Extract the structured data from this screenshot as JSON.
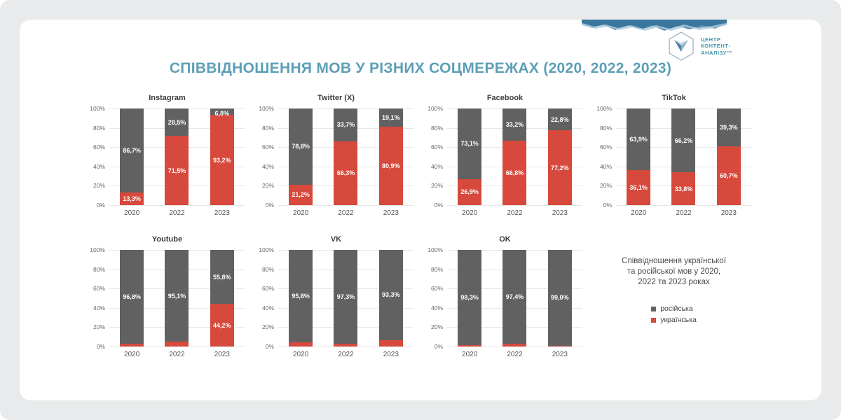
{
  "page": {
    "title": "СПІВВІДНОШЕННЯ МОВ У РІЗНИХ СОЦМЕРЕЖАХ (2020, 2022, 2023)",
    "background_color": "#e9eaeb",
    "card_color": "#ffffff",
    "title_color": "#5d9fb7"
  },
  "logo": {
    "text": "ЦЕНТР\nКОНТЕНТ-\nАНАЛІЗУ™",
    "icon": "dove-in-hexagon-icon",
    "color": "#3e96ad"
  },
  "note": {
    "text": "Співвідношення української\nта російської мов у 2020,\n2022 та 2023 роках"
  },
  "legend": {
    "items": [
      {
        "label": "російська",
        "color": "#616161"
      },
      {
        "label": "українська",
        "color": "#d6493c"
      }
    ]
  },
  "chart_data": [
    {
      "type": "bar",
      "stacked": true,
      "title": "Instagram",
      "categories": [
        "2020",
        "2022",
        "2023"
      ],
      "yticks": [
        0,
        20,
        40,
        60,
        80,
        100
      ],
      "ylim": [
        0,
        100
      ],
      "series": [
        {
          "name": "українська",
          "color": "#d6493c",
          "values": [
            13.3,
            71.5,
            93.2
          ]
        },
        {
          "name": "російська",
          "color": "#616161",
          "values": [
            86.7,
            28.5,
            6.8
          ]
        }
      ]
    },
    {
      "type": "bar",
      "stacked": true,
      "title": "Twitter (X)",
      "categories": [
        "2020",
        "2022",
        "2023"
      ],
      "yticks": [
        0,
        20,
        40,
        60,
        80,
        100
      ],
      "ylim": [
        0,
        100
      ],
      "series": [
        {
          "name": "українська",
          "color": "#d6493c",
          "values": [
            21.2,
            66.3,
            80.9
          ]
        },
        {
          "name": "російська",
          "color": "#616161",
          "values": [
            78.8,
            33.7,
            19.1
          ]
        }
      ]
    },
    {
      "type": "bar",
      "stacked": true,
      "title": "Facebook",
      "categories": [
        "2020",
        "2022",
        "2023"
      ],
      "yticks": [
        0,
        20,
        40,
        60,
        80,
        100
      ],
      "ylim": [
        0,
        100
      ],
      "series": [
        {
          "name": "українська",
          "color": "#d6493c",
          "values": [
            26.9,
            66.8,
            77.2
          ]
        },
        {
          "name": "російська",
          "color": "#616161",
          "values": [
            73.1,
            33.2,
            22.8
          ]
        }
      ]
    },
    {
      "type": "bar",
      "stacked": true,
      "title": "TikTok",
      "categories": [
        "2020",
        "2022",
        "2023"
      ],
      "yticks": [
        0,
        20,
        40,
        60,
        80,
        100
      ],
      "ylim": [
        0,
        100
      ],
      "series": [
        {
          "name": "українська",
          "color": "#d6493c",
          "values": [
            36.1,
            33.8,
            60.7
          ]
        },
        {
          "name": "російська",
          "color": "#616161",
          "values": [
            63.9,
            66.2,
            39.3
          ]
        }
      ]
    },
    {
      "type": "bar",
      "stacked": true,
      "title": "Youtube",
      "categories": [
        "2020",
        "2022",
        "2023"
      ],
      "yticks": [
        0,
        20,
        40,
        60,
        80,
        100
      ],
      "ylim": [
        0,
        100
      ],
      "series": [
        {
          "name": "українська",
          "color": "#d6493c",
          "values": [
            3.2,
            4.9,
            44.2
          ]
        },
        {
          "name": "російська",
          "color": "#616161",
          "values": [
            96.8,
            95.1,
            55.8
          ]
        }
      ]
    },
    {
      "type": "bar",
      "stacked": true,
      "title": "VK",
      "categories": [
        "2020",
        "2022",
        "2023"
      ],
      "yticks": [
        0,
        20,
        40,
        60,
        80,
        100
      ],
      "ylim": [
        0,
        100
      ],
      "series": [
        {
          "name": "українська",
          "color": "#d6493c",
          "values": [
            4.2,
            2.7,
            6.7
          ]
        },
        {
          "name": "російська",
          "color": "#616161",
          "values": [
            95.8,
            97.3,
            93.3
          ]
        }
      ]
    },
    {
      "type": "bar",
      "stacked": true,
      "title": "OK",
      "categories": [
        "2020",
        "2022",
        "2023"
      ],
      "yticks": [
        0,
        20,
        40,
        60,
        80,
        100
      ],
      "ylim": [
        0,
        100
      ],
      "series": [
        {
          "name": "українська",
          "color": "#d6493c",
          "values": [
            1.7,
            2.6,
            1.0
          ]
        },
        {
          "name": "російська",
          "color": "#616161",
          "values": [
            98.3,
            97.4,
            99.0
          ]
        }
      ]
    }
  ]
}
